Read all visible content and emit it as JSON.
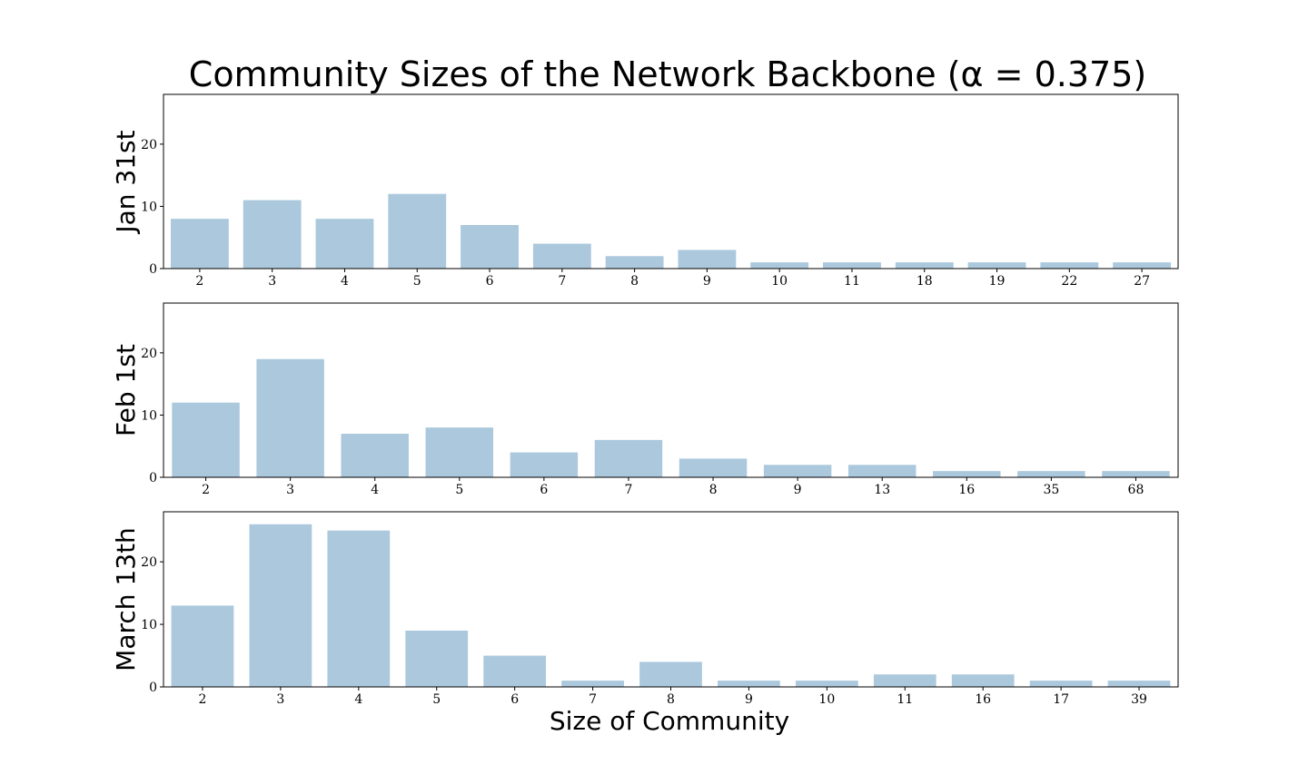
{
  "colors": {
    "bar": "#abc8dd",
    "axis": "#000000"
  },
  "chart_data": {
    "type": "bar",
    "title": "Community Sizes of the Network Backbone (α = 0.375)",
    "xlabel": "Size of Community",
    "ylim": [
      0,
      28
    ],
    "yticks": [
      0,
      10,
      20
    ],
    "panels": [
      {
        "ylabel": "Jan 31st",
        "categories": [
          "2",
          "3",
          "4",
          "5",
          "6",
          "7",
          "8",
          "9",
          "10",
          "11",
          "18",
          "19",
          "22",
          "27"
        ],
        "values": [
          8,
          11,
          8,
          12,
          7,
          4,
          2,
          3,
          1,
          1,
          1,
          1,
          1,
          1
        ]
      },
      {
        "ylabel": "Feb 1st",
        "categories": [
          "2",
          "3",
          "4",
          "5",
          "6",
          "7",
          "8",
          "9",
          "13",
          "16",
          "35",
          "68"
        ],
        "values": [
          12,
          19,
          7,
          8,
          4,
          6,
          3,
          2,
          2,
          1,
          1,
          1
        ]
      },
      {
        "ylabel": "March 13th",
        "categories": [
          "2",
          "3",
          "4",
          "5",
          "6",
          "7",
          "8",
          "9",
          "10",
          "11",
          "16",
          "17",
          "39"
        ],
        "values": [
          13,
          26,
          25,
          9,
          5,
          1,
          4,
          1,
          1,
          2,
          2,
          1,
          1
        ]
      }
    ]
  }
}
